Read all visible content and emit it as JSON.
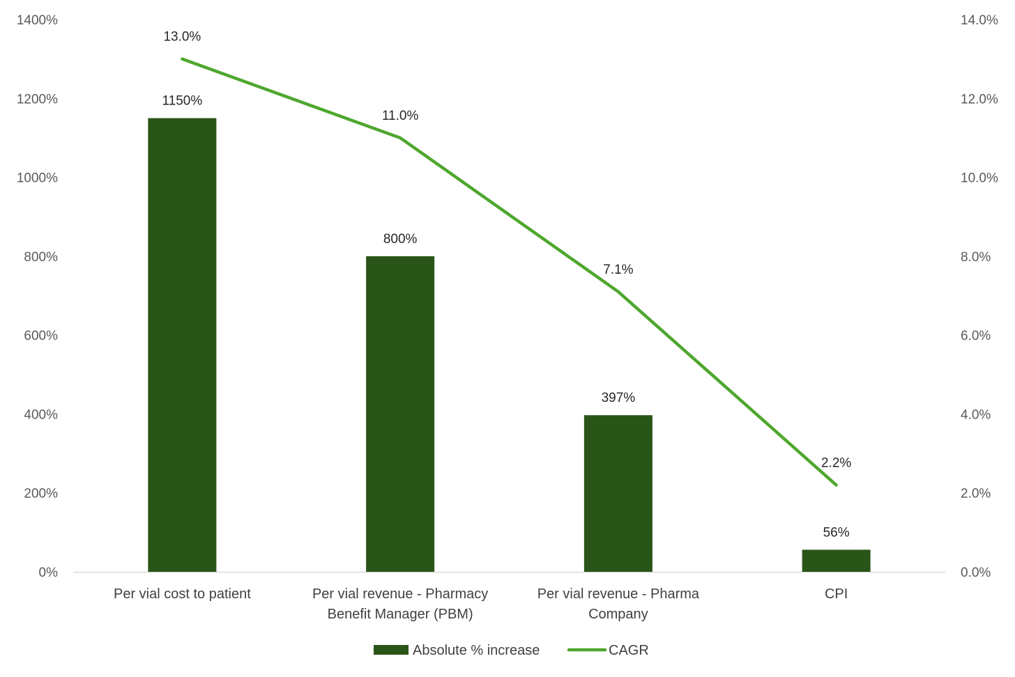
{
  "chart_data": {
    "type": "bar",
    "categories": [
      [
        "Per vial cost to patient"
      ],
      [
        "Per vial revenue - Pharmacy",
        "Benefit Manager (PBM)"
      ],
      [
        "Per vial revenue - Pharma",
        "Company"
      ],
      [
        "CPI"
      ]
    ],
    "series": [
      {
        "name": "Absolute % increase",
        "type": "bar",
        "axis": "left",
        "values": [
          1150,
          800,
          397,
          56
        ],
        "labels": [
          "1150%",
          "800%",
          "397%",
          "56%"
        ],
        "color": "#295519"
      },
      {
        "name": "CAGR",
        "type": "line",
        "axis": "right",
        "values": [
          13.0,
          11.0,
          7.1,
          2.2
        ],
        "labels": [
          "13.0%",
          "11.0%",
          "7.1%",
          "2.2%"
        ],
        "color": "#4ea72e"
      }
    ],
    "y_left": {
      "range": [
        0,
        1400
      ],
      "ticks": [
        "0%",
        "200%",
        "400%",
        "600%",
        "800%",
        "1000%",
        "1200%",
        "1400%"
      ]
    },
    "y_right": {
      "range": [
        0,
        14
      ],
      "ticks": [
        "0.0%",
        "2.0%",
        "4.0%",
        "6.0%",
        "8.0%",
        "10.0%",
        "12.0%",
        "14.0%"
      ]
    },
    "grid": false,
    "legend_position": "bottom",
    "axis_color": "#d9d9d9"
  }
}
